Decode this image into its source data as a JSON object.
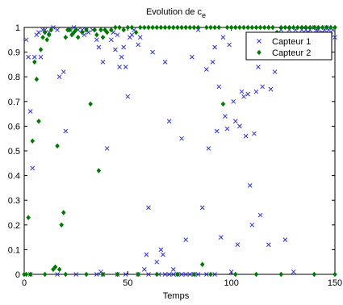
{
  "chart_data": {
    "type": "scatter",
    "title": "Evolution de c",
    "title_subscript": "e",
    "xlabel": "Temps",
    "ylabel": "",
    "xlim": [
      0,
      150
    ],
    "ylim": [
      0,
      1
    ],
    "xticks": [
      0,
      50,
      100,
      150
    ],
    "yticks": [
      0,
      0.1,
      0.2,
      0.3,
      0.4,
      0.5,
      0.6,
      0.7,
      0.8,
      0.9,
      1
    ],
    "grid": false,
    "legend_position": "top-right",
    "series": [
      {
        "name": "Capteur 1",
        "marker": "x",
        "color": "#3333cc",
        "points": [
          [
            1,
            0.95
          ],
          [
            2,
            0.88
          ],
          [
            3,
            0.66
          ],
          [
            4,
            0.43
          ],
          [
            5,
            0.88
          ],
          [
            6,
            0.97
          ],
          [
            7,
            0.98
          ],
          [
            8,
            0.88
          ],
          [
            9,
            0.99
          ],
          [
            10,
            0.99
          ],
          [
            12,
            0.98
          ],
          [
            14,
            1.0
          ],
          [
            16,
            0.99
          ],
          [
            17,
            0.8
          ],
          [
            19,
            0.82
          ],
          [
            20,
            0.58
          ],
          [
            22,
            0.99
          ],
          [
            24,
            1.0
          ],
          [
            26,
            0.99
          ],
          [
            28,
            0.99
          ],
          [
            29,
            0.97
          ],
          [
            30,
            0.99
          ],
          [
            31,
            0.98
          ],
          [
            33,
            0.99
          ],
          [
            35,
            0.95
          ],
          [
            36,
            0.92
          ],
          [
            37,
            0.01
          ],
          [
            38,
            0.86
          ],
          [
            40,
            0.51
          ],
          [
            42,
            0.95
          ],
          [
            43,
            0.98
          ],
          [
            44,
            0.91
          ],
          [
            45,
            0.97
          ],
          [
            46,
            0.84
          ],
          [
            47,
            0.88
          ],
          [
            48,
            0.92
          ],
          [
            49,
            0.84
          ],
          [
            50,
            0.72
          ],
          [
            51,
            0.96
          ],
          [
            52,
            0.97
          ],
          [
            53,
            0.99
          ],
          [
            55,
            0.93
          ],
          [
            56,
            0.96
          ],
          [
            58,
            0.02
          ],
          [
            59,
            0.08
          ],
          [
            60,
            0.27
          ],
          [
            62,
            0.9
          ],
          [
            64,
            0.05
          ],
          [
            66,
            0.1
          ],
          [
            67,
            0.08
          ],
          [
            68,
            0.86
          ],
          [
            70,
            0.62
          ],
          [
            72,
            0.02
          ],
          [
            76,
            0.55
          ],
          [
            78,
            0.14
          ],
          [
            81,
            0.88
          ],
          [
            84,
            0.99
          ],
          [
            86,
            0.27
          ],
          [
            88,
            0.83
          ],
          [
            89,
            0.51
          ],
          [
            91,
            0.86
          ],
          [
            92,
            0.92
          ],
          [
            93,
            0.58
          ],
          [
            94,
            0.76
          ],
          [
            95,
            0.15
          ],
          [
            96,
            0.96
          ],
          [
            97,
            0.64
          ],
          [
            98,
            0.59
          ],
          [
            99,
            0.93
          ],
          [
            100,
            0.01
          ],
          [
            101,
            0.7
          ],
          [
            102,
            0.62
          ],
          [
            103,
            0.12
          ],
          [
            104,
            0.6
          ],
          [
            105,
            0.74
          ],
          [
            106,
            0.72
          ],
          [
            107,
            0.56
          ],
          [
            108,
            0.73
          ],
          [
            109,
            0.36
          ],
          [
            110,
            0.2
          ],
          [
            111,
            0.57
          ],
          [
            112,
            0.74
          ],
          [
            113,
            0.84
          ],
          [
            114,
            0.24
          ],
          [
            115,
            0.76
          ],
          [
            116,
            0.89
          ],
          [
            117,
            0.91
          ],
          [
            118,
            0.12
          ],
          [
            119,
            0.75
          ],
          [
            120,
            0.97
          ],
          [
            121,
            0.82
          ],
          [
            122,
            0.92
          ],
          [
            124,
            0.99
          ],
          [
            126,
            0.14
          ],
          [
            128,
            0.99
          ],
          [
            129,
            0.97
          ],
          [
            130,
            0.01
          ],
          [
            131,
            0.99
          ],
          [
            132,
            0.97
          ],
          [
            133,
            0.96
          ],
          [
            134,
            0.99
          ],
          [
            135,
            1.0
          ],
          [
            136,
            0.99
          ],
          [
            137,
            0.98
          ],
          [
            138,
            0.99
          ],
          [
            139,
            0.96
          ],
          [
            140,
            1.0
          ],
          [
            141,
            0.99
          ],
          [
            142,
            0.99
          ],
          [
            143,
            0.97
          ],
          [
            144,
            0.98
          ],
          [
            145,
            0.99
          ],
          [
            146,
            1.0
          ],
          [
            147,
            0.99
          ],
          [
            148,
            0.97
          ],
          [
            149,
            0.99
          ],
          [
            150,
            0.96
          ],
          [
            3,
            0.0
          ],
          [
            16,
            0.0
          ],
          [
            25,
            0.0
          ],
          [
            35,
            0.0
          ],
          [
            38,
            0.0
          ],
          [
            45,
            0.0
          ],
          [
            49,
            0.0
          ],
          [
            55,
            0.0
          ],
          [
            60,
            0.0
          ],
          [
            65,
            0.0
          ],
          [
            68,
            0.0
          ],
          [
            70,
            0.0
          ],
          [
            72,
            0.0
          ],
          [
            74,
            0.0
          ],
          [
            76,
            0.0
          ],
          [
            78,
            0.0
          ],
          [
            80,
            0.0
          ],
          [
            82,
            0.0
          ],
          [
            84,
            0.0
          ],
          [
            88,
            0.0
          ],
          [
            92,
            0.0
          ]
        ]
      },
      {
        "name": "Capteur 2",
        "marker": "diamond",
        "color": "#007a00",
        "points": [
          [
            1,
            0.0
          ],
          [
            2,
            0.23
          ],
          [
            3,
            0.0
          ],
          [
            4,
            0.54
          ],
          [
            5,
            0.86
          ],
          [
            6,
            0.79
          ],
          [
            7,
            0.62
          ],
          [
            8,
            0.91
          ],
          [
            9,
            0.96
          ],
          [
            10,
            0.98
          ],
          [
            11,
            0.95
          ],
          [
            12,
            0.97
          ],
          [
            13,
            0.99
          ],
          [
            14,
            0.02
          ],
          [
            15,
            0.03
          ],
          [
            16,
            0.52
          ],
          [
            17,
            0.02
          ],
          [
            18,
            0.2
          ],
          [
            19,
            0.25
          ],
          [
            20,
            0.96
          ],
          [
            21,
            0.99
          ],
          [
            22,
            0.99
          ],
          [
            23,
            0.97
          ],
          [
            24,
            0.98
          ],
          [
            25,
            0.99
          ],
          [
            26,
            0.96
          ],
          [
            28,
            0.98
          ],
          [
            30,
            0.99
          ],
          [
            32,
            0.69
          ],
          [
            34,
            0.99
          ],
          [
            35,
            0.97
          ],
          [
            36,
            0.42
          ],
          [
            37,
            0.99
          ],
          [
            38,
            0.96
          ],
          [
            39,
            0.99
          ],
          [
            40,
            0.98
          ],
          [
            42,
            0.99
          ],
          [
            44,
            1.0
          ],
          [
            46,
            1.0
          ],
          [
            48,
            0.99
          ],
          [
            50,
            1.0
          ],
          [
            52,
            1.0
          ],
          [
            54,
            0.98
          ],
          [
            56,
            1.0
          ],
          [
            58,
            1.0
          ],
          [
            60,
            1.0
          ],
          [
            62,
            1.0
          ],
          [
            64,
            1.0
          ],
          [
            66,
            1.0
          ],
          [
            68,
            1.0
          ],
          [
            70,
            1.0
          ],
          [
            72,
            1.0
          ],
          [
            74,
            1.0
          ],
          [
            76,
            1.0
          ],
          [
            78,
            1.0
          ],
          [
            80,
            1.0
          ],
          [
            82,
            1.0
          ],
          [
            84,
            1.0
          ],
          [
            86,
            0.04
          ],
          [
            88,
            1.0
          ],
          [
            90,
            1.0
          ],
          [
            92,
            1.0
          ],
          [
            94,
            1.0
          ],
          [
            96,
            0.69
          ],
          [
            98,
            1.0
          ],
          [
            100,
            1.0
          ],
          [
            102,
            1.0
          ],
          [
            104,
            1.0
          ],
          [
            106,
            1.0
          ],
          [
            108,
            1.0
          ],
          [
            110,
            1.0
          ],
          [
            112,
            1.0
          ],
          [
            114,
            1.0
          ],
          [
            116,
            1.0
          ],
          [
            118,
            1.0
          ],
          [
            120,
            1.0
          ],
          [
            122,
            0.98
          ],
          [
            124,
            1.0
          ],
          [
            126,
            1.0
          ],
          [
            128,
            1.0
          ],
          [
            130,
            1.0
          ],
          [
            132,
            1.0
          ],
          [
            134,
            1.0
          ],
          [
            136,
            1.0
          ],
          [
            138,
            1.0
          ],
          [
            140,
            1.0
          ],
          [
            142,
            1.0
          ],
          [
            144,
            1.0
          ],
          [
            146,
            1.0
          ],
          [
            148,
            1.0
          ],
          [
            150,
            1.0
          ],
          [
            0,
            0.0
          ],
          [
            10,
            0.0
          ],
          [
            20,
            0.0
          ],
          [
            30,
            0.0
          ],
          [
            38,
            0.0
          ],
          [
            45,
            0.0
          ],
          [
            55,
            0.0
          ],
          [
            64,
            0.0
          ],
          [
            74,
            0.0
          ],
          [
            82,
            0.0
          ],
          [
            90,
            0.0
          ],
          [
            102,
            0.0
          ],
          [
            112,
            0.0
          ],
          [
            124,
            0.0
          ],
          [
            140,
            0.0
          ],
          [
            150,
            0.0
          ]
        ]
      }
    ]
  }
}
